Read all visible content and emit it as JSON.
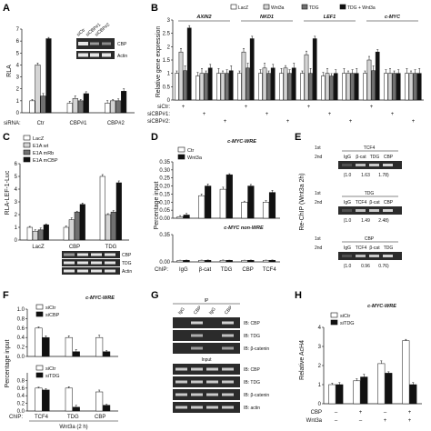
{
  "panel_labels": [
    "A",
    "B",
    "C",
    "D",
    "E",
    "F",
    "G",
    "H"
  ],
  "colors": {
    "white": "#ffffff",
    "lightgray": "#d4d4d4",
    "darkgray": "#707070",
    "black": "#111111",
    "blot_bg": "#2b2b2b",
    "band": "#e6e6e6"
  },
  "panelA": {
    "ylabel": "RLA",
    "legend": [
      "LacZ",
      "Wnt3a",
      "TDG",
      "TDG + Wnt3a"
    ],
    "xlabel_prefix": "siRNA:",
    "blot_lanes": [
      "siCtr",
      "siCBP#1",
      "siCBP#2"
    ],
    "blot_rows": [
      "CBP",
      "Actin"
    ]
  },
  "panelB": {
    "ylabel": "Relative gene expression",
    "genes": [
      "AXIN2",
      "NKD1",
      "LEF1",
      "c-MYC"
    ],
    "row_labels": [
      "siCtr:",
      "siCBP#1:",
      "siCBP#2:"
    ],
    "row_marks": [
      [
        "+",
        "",
        ""
      ],
      [
        "",
        "+",
        ""
      ],
      [
        "",
        "",
        "+"
      ],
      [
        "+",
        "",
        ""
      ],
      [
        "",
        "+",
        ""
      ],
      [
        "",
        "",
        "+"
      ],
      [
        "+",
        "",
        ""
      ],
      [
        "",
        "+",
        ""
      ],
      [
        "",
        "",
        "+"
      ],
      [
        "+",
        "",
        ""
      ],
      [
        "",
        "+",
        ""
      ],
      [
        "",
        "",
        "+"
      ]
    ]
  },
  "panelC": {
    "ylabel": "RLA-LEF-1-Luc",
    "legend": [
      "LacZ",
      "E1A wt",
      "E1A mRb",
      "E1A mCBP"
    ],
    "blot_rows": [
      "CBP",
      "TDG",
      "Actin"
    ]
  },
  "panelD": {
    "title_top": "c-MYC-WRE",
    "title_bottom": "c-MYC non-WRE",
    "ylabel": "Percentage input",
    "legend": [
      "Ctr",
      "Wnt3a"
    ],
    "chip_prefix": "ChIP:"
  },
  "panelE": {
    "ylabel": "Re-ChIP (Wnt3a 2h)",
    "blocks": [
      {
        "first": "1st",
        "second": "2nd",
        "title": "TCF4",
        "lanes": [
          "IgG",
          "β-cat",
          "TDG",
          "CBP"
        ],
        "values": [
          "(1.0",
          "1.63",
          "1.78)"
        ]
      },
      {
        "first": "1st",
        "second": "2nd",
        "title": "TDG",
        "lanes": [
          "IgG",
          "TCF4",
          "β-cat",
          "CBP"
        ],
        "values": [
          "(1.0",
          "1.49",
          "2.48)"
        ]
      },
      {
        "first": "1st",
        "second": "2nd",
        "title": "CBP",
        "lanes": [
          "IgG",
          "TCF4",
          "β-cat",
          "TDG"
        ],
        "values": [
          "(1.0",
          "0.96",
          "0.76)"
        ]
      }
    ]
  },
  "panelF": {
    "title": "c-MYC-WRE",
    "ylabel": "Percentage input",
    "legend_top": [
      "siCtr",
      "siCBP"
    ],
    "legend_bottom": [
      "siCtr",
      "siTDG"
    ],
    "chip_prefix": "ChIP:",
    "xlabels": [
      "TCF4",
      "TDG",
      "CBP"
    ],
    "subtitle": "Wnt3a (2 h)"
  },
  "panelG": {
    "ip_title": "IP",
    "lanes": [
      "IgG",
      "CBP",
      "IgG",
      "CBP"
    ],
    "ip_rows": [
      "IB: CBP",
      "IB: TDG",
      "IB: β-catenin"
    ],
    "input_title": "Input",
    "input_rows": [
      "IB: CBP",
      "IB: TDG",
      "IB: β-catenin",
      "IB: actin"
    ]
  },
  "panelH": {
    "title": "c-MYC-WRE",
    "ylabel": "Relative AcH4",
    "legend": [
      "siCtr",
      "siTDG"
    ],
    "row_labels": [
      "CBP",
      "Wnt3a"
    ],
    "row_marks": [
      [
        "",
        ""
      ],
      [
        "+",
        ""
      ],
      [
        "",
        "+"
      ],
      [
        "+",
        "+"
      ]
    ]
  },
  "chart_data": [
    {
      "type": "bar",
      "panel": "A",
      "ylabel": "RLA",
      "ylim": [
        0,
        7
      ],
      "categories": [
        "Ctr",
        "CBP#1",
        "CBP#2"
      ],
      "series": [
        {
          "name": "LacZ",
          "values": [
            1.0,
            0.8,
            0.8
          ]
        },
        {
          "name": "Wnt3a",
          "values": [
            4.0,
            1.2,
            1.0
          ]
        },
        {
          "name": "TDG",
          "values": [
            1.4,
            1.0,
            1.0
          ]
        },
        {
          "name": "TDG + Wnt3a",
          "values": [
            6.2,
            1.6,
            1.8
          ]
        }
      ]
    },
    {
      "type": "bar",
      "panel": "B",
      "ylabel": "Relative gene expression",
      "ylim": [
        0,
        3
      ],
      "categories": [
        "AXIN2-siCtr",
        "AXIN2-siCBP#1",
        "AXIN2-siCBP#2",
        "NKD1-siCtr",
        "NKD1-siCBP#1",
        "NKD1-siCBP#2",
        "LEF1-siCtr",
        "LEF1-siCBP#1",
        "LEF1-siCBP#2",
        "c-MYC-siCtr",
        "c-MYC-siCBP#1",
        "c-MYC-siCBP#2"
      ],
      "series": [
        {
          "name": "LacZ",
          "values": [
            1.0,
            0.9,
            1.0,
            1.0,
            1.0,
            1.0,
            1.0,
            0.9,
            1.0,
            1.0,
            1.0,
            1.0
          ]
        },
        {
          "name": "Wnt3a",
          "values": [
            1.8,
            1.0,
            1.0,
            1.8,
            1.2,
            1.2,
            1.7,
            1.0,
            1.0,
            1.5,
            1.0,
            1.0
          ]
        },
        {
          "name": "TDG",
          "values": [
            1.1,
            1.0,
            1.0,
            1.2,
            1.0,
            1.0,
            1.0,
            0.9,
            1.0,
            1.1,
            1.0,
            1.0
          ]
        },
        {
          "name": "TDG + Wnt3a",
          "values": [
            2.7,
            1.2,
            1.1,
            2.3,
            1.2,
            1.2,
            2.3,
            1.0,
            1.0,
            1.8,
            1.0,
            1.0
          ]
        }
      ]
    },
    {
      "type": "bar",
      "panel": "C",
      "ylabel": "RLA-LEF-1-Luc",
      "ylim": [
        0,
        6
      ],
      "categories": [
        "LacZ",
        "CBP",
        "TDG"
      ],
      "series": [
        {
          "name": "LacZ",
          "values": [
            1.0,
            1.0,
            5.0
          ]
        },
        {
          "name": "E1A wt",
          "values": [
            0.7,
            1.6,
            2.0
          ]
        },
        {
          "name": "E1A mRb",
          "values": [
            0.8,
            2.2,
            2.2
          ]
        },
        {
          "name": "E1A mCBP",
          "values": [
            1.2,
            2.8,
            4.5
          ]
        }
      ]
    },
    {
      "type": "bar",
      "panel": "D-top",
      "title": "c-MYC-WRE",
      "ylim": [
        0,
        0.35
      ],
      "categories": [
        "IgG",
        "β-cat",
        "TDG",
        "CBP",
        "TCF4"
      ],
      "series": [
        {
          "name": "Ctr",
          "values": [
            0.01,
            0.14,
            0.18,
            0.1,
            0.1
          ]
        },
        {
          "name": "Wnt3a",
          "values": [
            0.02,
            0.2,
            0.27,
            0.2,
            0.16
          ]
        }
      ]
    },
    {
      "type": "bar",
      "panel": "D-bottom",
      "title": "c-MYC non-WRE",
      "ylim": [
        0,
        0.35
      ],
      "categories": [
        "IgG",
        "β-cat",
        "TDG",
        "CBP",
        "TCF4"
      ],
      "series": [
        {
          "name": "Ctr",
          "values": [
            0.02,
            0.02,
            0.02,
            0.02,
            0.02
          ]
        },
        {
          "name": "Wnt3a",
          "values": [
            0.02,
            0.02,
            0.02,
            0.02,
            0.02
          ]
        }
      ]
    },
    {
      "type": "bar",
      "panel": "F-top",
      "title": "c-MYC-WRE",
      "ylim": [
        0,
        1
      ],
      "categories": [
        "TCF4",
        "TDG",
        "CBP"
      ],
      "series": [
        {
          "name": "siCtr",
          "values": [
            0.6,
            0.4,
            0.4
          ]
        },
        {
          "name": "siCBP",
          "values": [
            0.4,
            0.1,
            0.1
          ]
        }
      ]
    },
    {
      "type": "bar",
      "panel": "F-bottom",
      "ylim": [
        0,
        1
      ],
      "categories": [
        "TCF4",
        "TDG",
        "CBP"
      ],
      "series": [
        {
          "name": "siCtr",
          "values": [
            0.6,
            0.6,
            0.5
          ]
        },
        {
          "name": "siTDG",
          "values": [
            0.55,
            0.1,
            0.15
          ]
        }
      ]
    },
    {
      "type": "bar",
      "panel": "H",
      "title": "c-MYC-WRE",
      "ylabel": "Relative AcH4",
      "ylim": [
        0,
        4
      ],
      "categories": [
        "none",
        "CBP",
        "Wnt3a",
        "CBP+Wnt3a"
      ],
      "series": [
        {
          "name": "siCtr",
          "values": [
            1.0,
            1.2,
            2.1,
            3.3
          ]
        },
        {
          "name": "siTDG",
          "values": [
            1.0,
            1.4,
            1.6,
            1.0
          ]
        }
      ]
    }
  ]
}
